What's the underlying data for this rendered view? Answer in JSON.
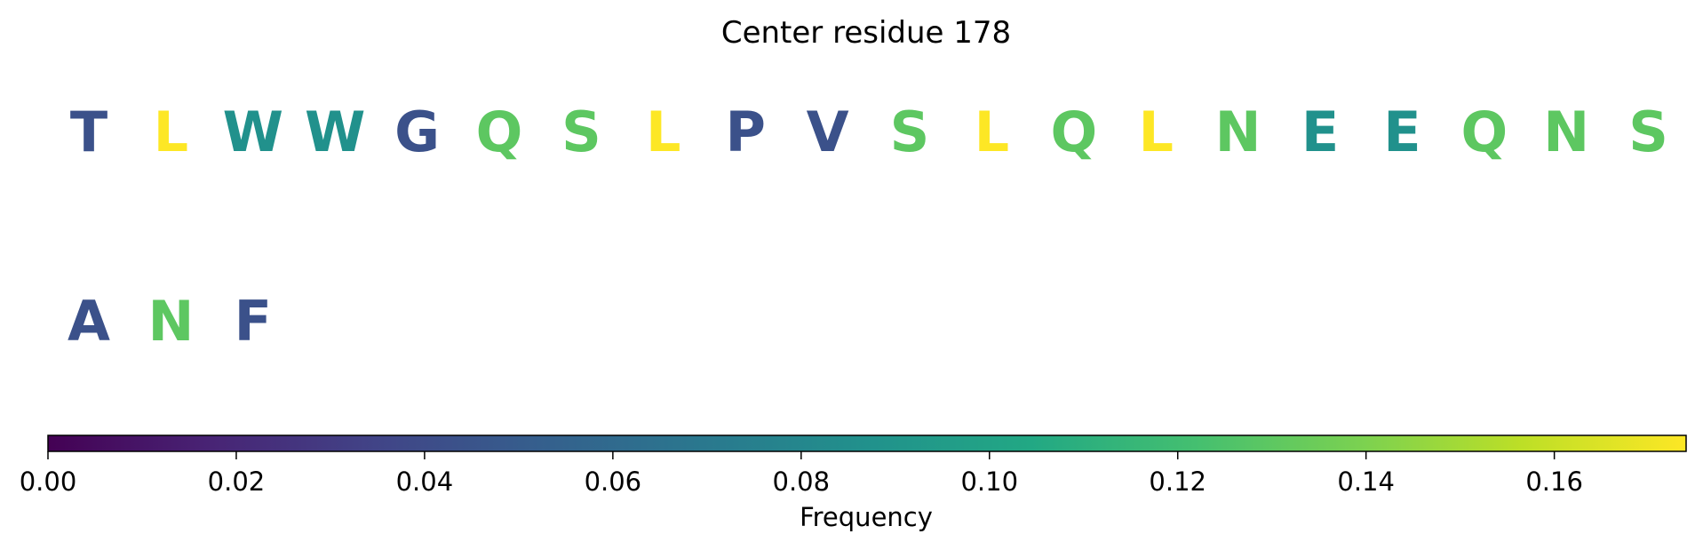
{
  "chart_data": {
    "type": "heatmap",
    "title": "Center residue 178",
    "residues": [
      {
        "letter": "T",
        "value": 0.043
      },
      {
        "letter": "L",
        "value": 0.174
      },
      {
        "letter": "W",
        "value": 0.087
      },
      {
        "letter": "W",
        "value": 0.087
      },
      {
        "letter": "G",
        "value": 0.043
      },
      {
        "letter": "Q",
        "value": 0.13
      },
      {
        "letter": "S",
        "value": 0.13
      },
      {
        "letter": "L",
        "value": 0.174
      },
      {
        "letter": "P",
        "value": 0.043
      },
      {
        "letter": "V",
        "value": 0.043
      },
      {
        "letter": "S",
        "value": 0.13
      },
      {
        "letter": "L",
        "value": 0.174
      },
      {
        "letter": "Q",
        "value": 0.13
      },
      {
        "letter": "L",
        "value": 0.174
      },
      {
        "letter": "N",
        "value": 0.13
      },
      {
        "letter": "E",
        "value": 0.087
      },
      {
        "letter": "E",
        "value": 0.087
      },
      {
        "letter": "Q",
        "value": 0.13
      },
      {
        "letter": "N",
        "value": 0.13
      },
      {
        "letter": "S",
        "value": 0.13
      },
      {
        "letter": "A",
        "value": 0.043
      },
      {
        "letter": "N",
        "value": 0.13
      },
      {
        "letter": "F",
        "value": 0.043
      }
    ],
    "per_row": 20,
    "colorbar": {
      "label": "Frequency",
      "range": [
        0.0,
        0.174
      ],
      "ticks": [
        0.0,
        0.02,
        0.04,
        0.06,
        0.08,
        0.1,
        0.12,
        0.14,
        0.16
      ],
      "tick_labels": [
        "0.00",
        "0.02",
        "0.04",
        "0.06",
        "0.08",
        "0.10",
        "0.12",
        "0.14",
        "0.16"
      ],
      "colormap": "viridis"
    }
  }
}
